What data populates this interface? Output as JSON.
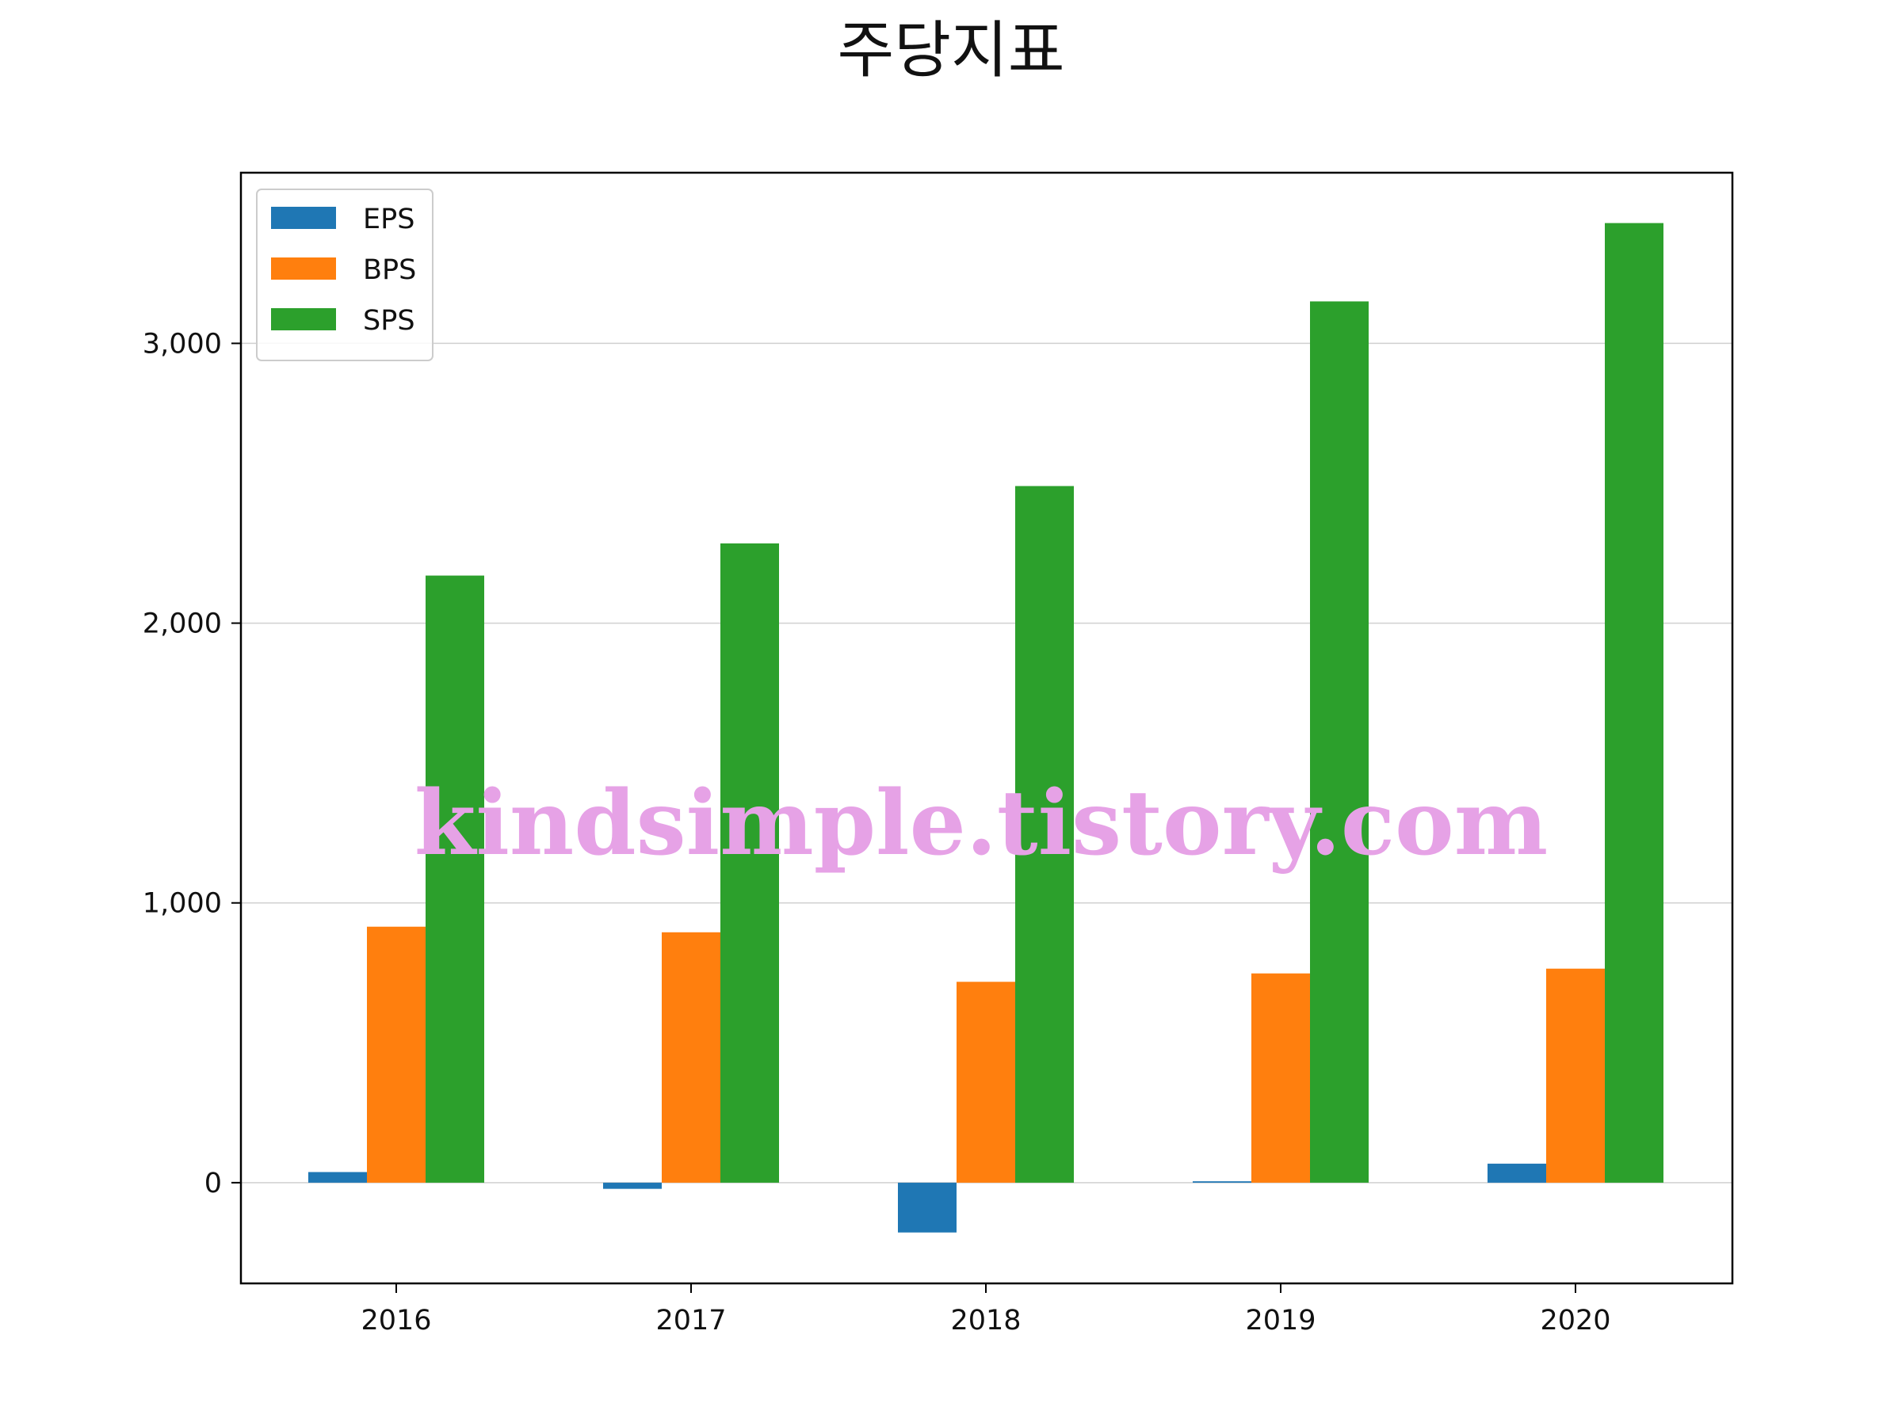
{
  "chart_data": {
    "type": "bar",
    "title": "주당지표",
    "xlabel": "",
    "ylabel": "",
    "categories": [
      "2016",
      "2017",
      "2018",
      "2019",
      "2020"
    ],
    "series": [
      {
        "name": "EPS",
        "color": "#1f77b4",
        "values": [
          38,
          -22,
          -178,
          5,
          68
        ]
      },
      {
        "name": "BPS",
        "color": "#ff7f0e",
        "values": [
          915,
          895,
          718,
          748,
          765
        ]
      },
      {
        "name": "SPS",
        "color": "#2ca02c",
        "values": [
          2170,
          2285,
          2490,
          3150,
          3430
        ]
      }
    ],
    "ylim": [
      -360,
      3610
    ],
    "yticks": [
      0,
      1000,
      2000,
      3000
    ],
    "ytick_labels": [
      "0",
      "1,000",
      "2,000",
      "3,000"
    ],
    "grid": "horizontal",
    "legend_position": "top-left",
    "watermark": "kindsimple.tistory.com",
    "watermark_color": "#e6a2e6"
  }
}
